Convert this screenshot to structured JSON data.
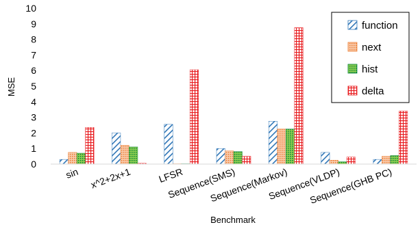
{
  "chart_data": {
    "type": "bar",
    "title": "",
    "xlabel": "Benchmark",
    "ylabel": "MSE",
    "ylim": [
      0,
      10
    ],
    "yticks": [
      0,
      1,
      2,
      3,
      4,
      5,
      6,
      7,
      8,
      9,
      10
    ],
    "grid": false,
    "legend_position": "top-right",
    "categories": [
      "sin",
      "x^2+2x+1",
      "LFSR",
      "Sequence(SMS)",
      "Sequence(Markov)",
      "Sequence(VLDP)",
      "Sequence(GHB PC)"
    ],
    "series": [
      {
        "name": "function",
        "color": "#2E75B6",
        "pattern": "diagonal-hatch",
        "values": [
          0.3,
          2.0,
          2.55,
          1.0,
          2.75,
          0.75,
          0.3
        ]
      },
      {
        "name": "next",
        "color": "#F4B183",
        "pattern": "dots",
        "values": [
          0.75,
          1.2,
          0.02,
          0.85,
          2.25,
          0.25,
          0.5
        ]
      },
      {
        "name": "hist",
        "color": "#00B050",
        "pattern": "dots",
        "values": [
          0.7,
          1.1,
          0.02,
          0.8,
          2.25,
          0.15,
          0.55
        ]
      },
      {
        "name": "delta",
        "color": "#FF0000",
        "pattern": "grid",
        "values": [
          2.35,
          0.05,
          6.05,
          0.5,
          8.75,
          0.45,
          3.4
        ]
      }
    ]
  }
}
